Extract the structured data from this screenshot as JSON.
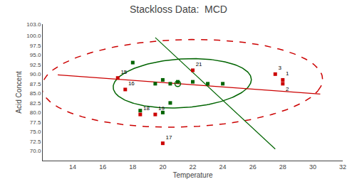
{
  "chart_data": {
    "type": "scatter",
    "title": "Stackloss Data:  MCD",
    "xlabel": "Temperature",
    "ylabel": "Acid Concent",
    "xlim": [
      12.0,
      32.0
    ],
    "ylim": [
      67.5,
      103.0
    ],
    "xticks": [
      14.0,
      16.0,
      18.0,
      20.0,
      22.0,
      24.0,
      26.0,
      28.0,
      30.0,
      32.0
    ],
    "yticks": [
      {
        "value": 70.0,
        "label": "70.0"
      },
      {
        "value": 72.5,
        "label": "72.5"
      },
      {
        "value": 75.0,
        "label": "75.0"
      },
      {
        "value": 77.5,
        "label": "77.5"
      },
      {
        "value": 80.0,
        "label": "80.0"
      },
      {
        "value": 82.5,
        "label": "82.5"
      },
      {
        "value": 85.0,
        "label": "85.0"
      },
      {
        "value": 87.5,
        "label": "87.5"
      },
      {
        "value": 90.0,
        "label": "90.0"
      },
      {
        "value": 92.5,
        "label": "92.5"
      },
      {
        "value": 95.0,
        "label": "95.0"
      },
      {
        "value": 97.5,
        "label": "97.5"
      },
      {
        "value": 100.0,
        "label": "100.0"
      },
      {
        "value": 103.0,
        "label": "103.0"
      }
    ],
    "grid": false,
    "series": [
      {
        "type": "ellipse",
        "color": "#cc0000",
        "line_style": "dashed",
        "cx": 21.3,
        "cy": 87.6,
        "w": 18.5,
        "h": 23.0,
        "angle": -12
      },
      {
        "type": "ellipse",
        "color": "#006400",
        "line_style": "solid",
        "cx": 21.3,
        "cy": 87.6,
        "w": 9.0,
        "h": 13.0,
        "angle": -12
      },
      {
        "type": "line",
        "color": "#cc0000",
        "line_style": "solid",
        "x": [
          13.0,
          30.5
        ],
        "y": [
          89.8,
          84.8
        ]
      },
      {
        "type": "line",
        "color": "#006400",
        "line_style": "solid",
        "x": [
          19.5,
          27.5
        ],
        "y": [
          99.5,
          70.5
        ]
      },
      {
        "type": "scatter",
        "color": "#006400",
        "marker": "square",
        "x": [
          20.0,
          20.5,
          21.0,
          22.0,
          23.0,
          24.0,
          20.5,
          20.0,
          18.0,
          18.5,
          19.5
        ],
        "y": [
          88.5,
          87.5,
          88.0,
          88.0,
          87.5,
          87.5,
          82.5,
          80.0,
          93.0,
          80.5,
          87.5
        ]
      },
      {
        "type": "scatter",
        "color": "#cc0000",
        "marker": "square",
        "x": [
          17.0,
          17.5,
          18.5,
          19.5,
          20.0,
          22.0,
          27.5,
          28.0,
          28.0
        ],
        "y": [
          89.0,
          86.0,
          79.5,
          79.5,
          72.0,
          91.0,
          90.0,
          88.5,
          87.5
        ],
        "labels": [
          "15",
          "16",
          "18",
          "19",
          "17",
          "21",
          "3",
          "1",
          "2"
        ]
      },
      {
        "type": "scatter",
        "color": "#006400",
        "marker": "circle-open",
        "x": [
          21.0
        ],
        "y": [
          87.5
        ]
      }
    ]
  }
}
